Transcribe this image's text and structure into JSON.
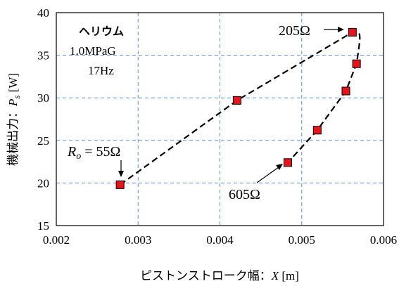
{
  "chart_data": {
    "type": "scatter",
    "xlabel_text": "ピストンストローク幅：",
    "xlabel_var": "X",
    "xlabel_unit": " [m]",
    "ylabel_text": "機械出力：",
    "ylabel_var": "P",
    "ylabel_sub": "s",
    "ylabel_unit": " [W]",
    "xlim": [
      0.002,
      0.006
    ],
    "ylim": [
      15,
      40
    ],
    "x_ticks": [
      "0.002",
      "0.003",
      "0.004",
      "0.005",
      "0.006"
    ],
    "y_ticks": [
      "15",
      "20",
      "25",
      "30",
      "35",
      "40"
    ],
    "grid": true,
    "series": [
      {
        "points": [
          {
            "x": 0.00278,
            "y": 19.8
          },
          {
            "x": 0.00421,
            "y": 29.7
          },
          {
            "x": 0.00562,
            "y": 37.7
          },
          {
            "x": 0.00567,
            "y": 34.0
          },
          {
            "x": 0.00554,
            "y": 30.8
          },
          {
            "x": 0.00519,
            "y": 26.2
          },
          {
            "x": 0.00483,
            "y": 22.4
          }
        ],
        "marker_color": "#e8141c",
        "line_color": "#000000"
      }
    ],
    "annotations": {
      "gas": "ヘリウム",
      "pressure": "1.0MPaG",
      "frequency": "17Hz",
      "label_205": "205Ω",
      "label_605": "605Ω",
      "label_55_var": "R",
      "label_55_sub": "o",
      "label_55_value": " = 55Ω"
    }
  }
}
